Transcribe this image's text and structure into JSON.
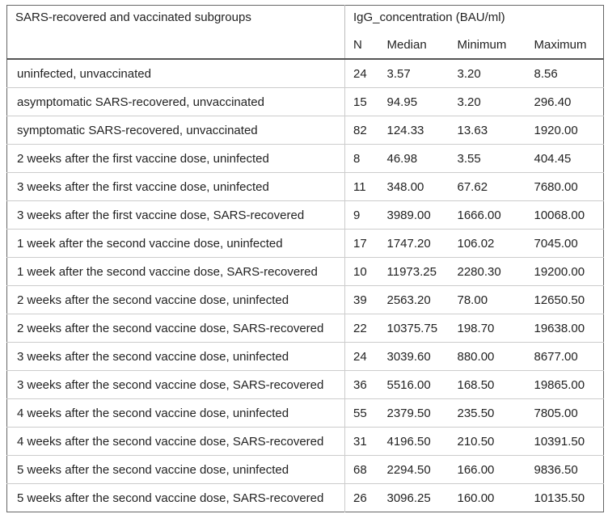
{
  "table": {
    "header": {
      "group": "SARS-recovered and vaccinated subgroups",
      "measure": "IgG_concentration (BAU/ml)",
      "columns": [
        "N",
        "Median",
        "Minimum",
        "Maximum"
      ]
    },
    "rows": [
      [
        "uninfected, unvaccinated",
        "24",
        "3.57",
        "3.20",
        "8.56"
      ],
      [
        "asymptomatic SARS-recovered, unvaccinated",
        "15",
        "94.95",
        "3.20",
        "296.40"
      ],
      [
        "symptomatic SARS-recovered, unvaccinated",
        "82",
        "124.33",
        "13.63",
        "1920.00"
      ],
      [
        "2 weeks after the first vaccine dose, uninfected",
        "8",
        "46.98",
        "3.55",
        "404.45"
      ],
      [
        "3 weeks after the first vaccine dose, uninfected",
        "11",
        "348.00",
        "67.62",
        "7680.00"
      ],
      [
        "3 weeks after the first vaccine dose, SARS-recovered",
        "9",
        "3989.00",
        "1666.00",
        "10068.00"
      ],
      [
        "1 week after the second vaccine dose, uninfected",
        "17",
        "1747.20",
        "106.02",
        "7045.00"
      ],
      [
        "1 week after the second vaccine dose, SARS-recovered",
        "10",
        "11973.25",
        "2280.30",
        "19200.00"
      ],
      [
        "2 weeks after the second vaccine dose, uninfected",
        "39",
        "2563.20",
        "78.00",
        "12650.50"
      ],
      [
        "2 weeks after the second vaccine dose, SARS-recovered",
        "22",
        "10375.75",
        "198.70",
        "19638.00"
      ],
      [
        "3 weeks after the second vaccine dose, uninfected",
        "24",
        "3039.60",
        "880.00",
        "8677.00"
      ],
      [
        "3 weeks after the second vaccine dose, SARS-recovered",
        "36",
        "5516.00",
        "168.50",
        "19865.00"
      ],
      [
        "4 weeks after the second vaccine dose, uninfected",
        "55",
        "2379.50",
        "235.50",
        "7805.00"
      ],
      [
        "4 weeks after the second vaccine dose, SARS-recovered",
        "31",
        "4196.50",
        "210.50",
        "10391.50"
      ],
      [
        "5 weeks after the second vaccine dose, uninfected",
        "68",
        "2294.50",
        "166.00",
        "9836.50"
      ],
      [
        "5 weeks after the second vaccine dose, SARS-recovered",
        "26",
        "3096.25",
        "160.00",
        "10135.50"
      ]
    ]
  }
}
